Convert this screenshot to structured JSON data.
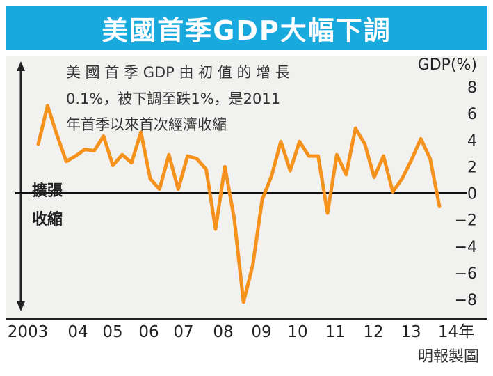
{
  "chart_data": {
    "type": "line",
    "title": "美國首季GDP大幅下調",
    "ylabel": "GDP(%)",
    "ylim": [
      -9,
      9
    ],
    "y_ticks": [
      "8",
      "6",
      "4",
      "2",
      "0",
      "−2",
      "−4",
      "−6",
      "−8"
    ],
    "x_ticks": [
      "2003",
      "04",
      "05",
      "06",
      "07",
      "08",
      "09",
      "10",
      "11",
      "12",
      "13",
      "14年"
    ],
    "zone_labels": {
      "above": "擴張",
      "below": "收縮"
    },
    "annotation": {
      "lines": [
        "美 國 首 季 GDP 由 初 值 的 增 長",
        "0.1%，被下調至跌1%，是2011",
        "年首季以來首次經濟收縮"
      ]
    },
    "series": [
      {
        "color": "#f5921e",
        "values": [
          3.7,
          6.6,
          4.4,
          2.4,
          2.8,
          3.3,
          3.2,
          4.3,
          2.1,
          2.9,
          2.3,
          4.6,
          1.1,
          0.3,
          2.9,
          0.3,
          2.8,
          2.6,
          1.8,
          -2.7,
          2.0,
          -1.9,
          -8.2,
          -5.4,
          -0.5,
          1.3,
          3.9,
          1.7,
          3.9,
          2.8,
          2.8,
          -1.5,
          2.9,
          1.4,
          4.9,
          3.7,
          1.2,
          2.8,
          0.1,
          1.1,
          2.5,
          4.1,
          2.6,
          -1.0
        ]
      }
    ],
    "x_start": 2003.0,
    "x_step": 0.25,
    "source_credit": "明報製圖"
  }
}
